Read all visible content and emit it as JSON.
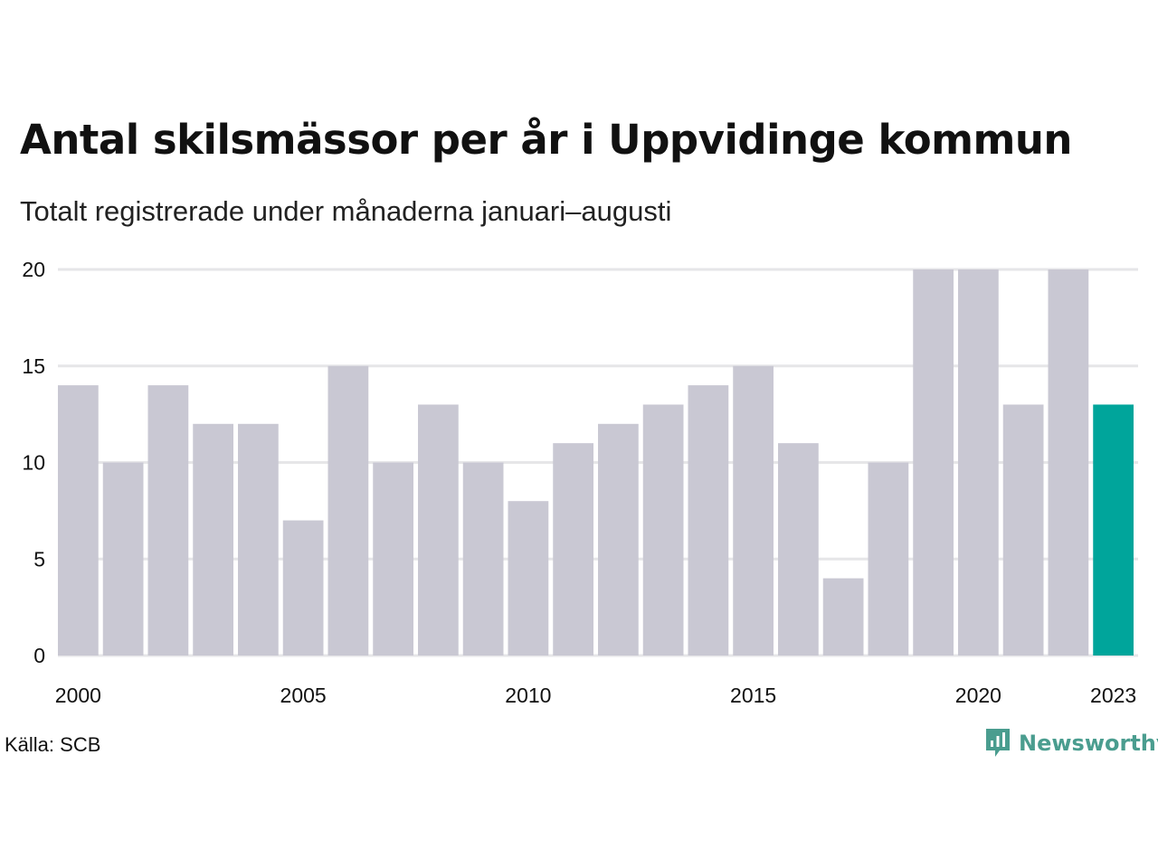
{
  "title": "Antal skilsmässor per år i Uppvidinge kommun",
  "subtitle": "Totalt registrerade under månaderna januari–augusti",
  "source": "Källa: SCB",
  "brand": {
    "name": "Newsworthy",
    "icon": "newsworthy-logo-icon",
    "color": "#4a9d8f"
  },
  "colors": {
    "bar": "#c9c8d3",
    "highlight": "#00a59b",
    "grid": "#e6e6e8"
  },
  "chart_data": {
    "type": "bar",
    "title": "Antal skilsmässor per år i Uppvidinge kommun",
    "subtitle": "Totalt registrerade under månaderna januari–augusti",
    "xlabel": "",
    "ylabel": "",
    "categories": [
      "2000",
      "2001",
      "2002",
      "2003",
      "2004",
      "2005",
      "2006",
      "2007",
      "2008",
      "2009",
      "2010",
      "2011",
      "2012",
      "2013",
      "2014",
      "2015",
      "2016",
      "2017",
      "2018",
      "2019",
      "2020",
      "2021",
      "2022",
      "2023"
    ],
    "values": [
      14,
      10,
      14,
      12,
      12,
      7,
      15,
      10,
      13,
      10,
      8,
      11,
      12,
      13,
      14,
      15,
      11,
      4,
      10,
      20,
      20,
      13,
      20,
      13
    ],
    "highlight_category": "2023",
    "ylim": [
      0,
      20
    ],
    "yticks": [
      0,
      5,
      10,
      15,
      20
    ],
    "xtick_labels": [
      "2000",
      "2005",
      "2010",
      "2015",
      "2020",
      "2023"
    ],
    "grid": true,
    "legend": "none"
  }
}
